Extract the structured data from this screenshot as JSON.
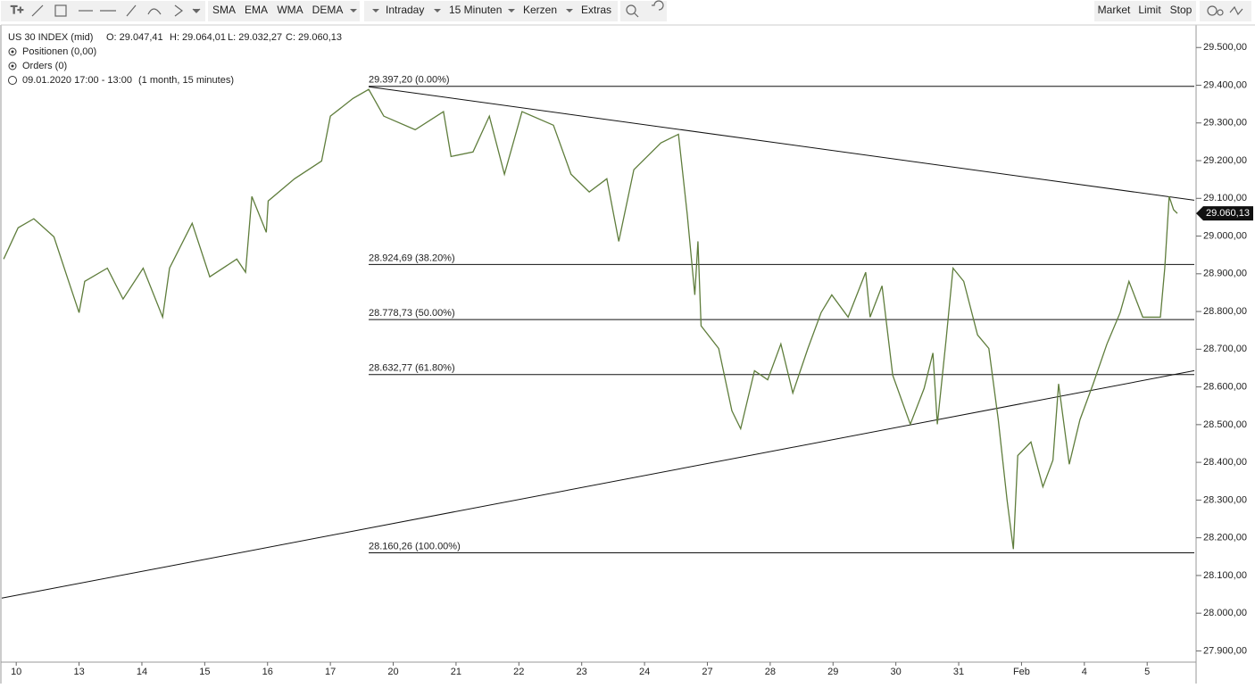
{
  "toolbar": {
    "indicators": [
      "SMA",
      "EMA",
      "WMA",
      "DEMA"
    ],
    "interval": "Intraday",
    "resolution": "15 Minuten",
    "chart_style": "Kerzen",
    "extras": "Extras",
    "orders": [
      "Market",
      "Limit",
      "Stop"
    ]
  },
  "info": {
    "symbol": "US 30 INDEX (mid)",
    "open": "O: 29.047,41",
    "high": "H: 29.064,01",
    "low": "L: 29.032,27",
    "close": "C: 29.060,13",
    "positions": "Positionen (0,00)",
    "orders": "Orders (0)",
    "period": "09.01.2020 17:00 - 13:00",
    "range": "(1 month, 15 minutes)"
  },
  "chart_data": {
    "type": "line",
    "x": [
      -0.2,
      0.03,
      0.28,
      0.6,
      0.81,
      1.0,
      1.09,
      1.45,
      1.7,
      2.02,
      2.33,
      2.44,
      2.8,
      3.08,
      3.51,
      3.65,
      3.75,
      3.98,
      4.01,
      4.43,
      4.86,
      5.0,
      5.36,
      5.61,
      5.85,
      6.35,
      6.8,
      6.92,
      7.27,
      7.53,
      7.77,
      8.05,
      8.55,
      8.83,
      9.12,
      9.4,
      9.59,
      9.83,
      10.26,
      10.54,
      10.68,
      10.8,
      10.85,
      10.9,
      11.18,
      11.39,
      11.53,
      11.75,
      11.96,
      12.17,
      12.36,
      12.6,
      12.81,
      12.98,
      13.24,
      13.52,
      13.59,
      13.78,
      13.95,
      14.23,
      14.45,
      14.59,
      14.66,
      14.8,
      14.91,
      15.08,
      15.3,
      15.48,
      15.63,
      15.77,
      15.87,
      15.94,
      16.15,
      16.34,
      16.5,
      16.59,
      16.76,
      16.93,
      17.14,
      17.36,
      17.57,
      17.71,
      17.93,
      18.21,
      18.28,
      18.35,
      18.42,
      18.48
    ],
    "series": [
      {
        "color": "#5f7d3c",
        "values": [
          28939,
          29022,
          29046,
          28998,
          28892,
          28797,
          28880,
          28915,
          28833,
          28915,
          28785,
          28915,
          29034,
          28892,
          28939,
          28904,
          29105,
          29010,
          29093,
          29152,
          29199,
          29318,
          29365,
          29389,
          29318,
          29282,
          29330,
          29211,
          29223,
          29318,
          29164,
          29330,
          29294,
          29164,
          29117,
          29152,
          28986,
          29176,
          29247,
          29270,
          29057,
          28844,
          28986,
          28762,
          28702,
          28537,
          28489,
          28643,
          28619,
          28714,
          28584,
          28702,
          28797,
          28844,
          28785,
          28904,
          28785,
          28868,
          28631,
          28501,
          28596,
          28690,
          28501,
          28726,
          28915,
          28880,
          28738,
          28702,
          28513,
          28300,
          28170,
          28418,
          28454,
          28335,
          28406,
          28608,
          28395,
          28513,
          28608,
          28714,
          28797,
          28880,
          28785,
          28785,
          28915,
          29105,
          29070,
          29060.13
        ]
      }
    ],
    "xlim": [
      -0.23,
      18.75
    ],
    "xticks": [
      {
        "value": 0,
        "label": "10"
      },
      {
        "value": 1,
        "label": "13"
      },
      {
        "value": 2,
        "label": "14"
      },
      {
        "value": 3,
        "label": "15"
      },
      {
        "value": 4,
        "label": "16"
      },
      {
        "value": 5,
        "label": "17"
      },
      {
        "value": 6,
        "label": "20"
      },
      {
        "value": 7,
        "label": "21"
      },
      {
        "value": 8,
        "label": "22"
      },
      {
        "value": 9,
        "label": "23"
      },
      {
        "value": 10,
        "label": "24"
      },
      {
        "value": 11,
        "label": "27"
      },
      {
        "value": 12,
        "label": "28"
      },
      {
        "value": 13,
        "label": "29"
      },
      {
        "value": 14,
        "label": "30"
      },
      {
        "value": 15,
        "label": "31"
      },
      {
        "value": 16,
        "label": "Feb"
      },
      {
        "value": 17,
        "label": "4"
      },
      {
        "value": 18,
        "label": "5"
      }
    ],
    "ylim": [
      27875,
      29555
    ],
    "yticks": [
      {
        "value": 27900,
        "label": "27.900,00"
      },
      {
        "value": 28000,
        "label": "28.000,00"
      },
      {
        "value": 28100,
        "label": "28.100,00"
      },
      {
        "value": 28200,
        "label": "28.200,00"
      },
      {
        "value": 28300,
        "label": "28.300,00"
      },
      {
        "value": 28400,
        "label": "28.400,00"
      },
      {
        "value": 28500,
        "label": "28.500,00"
      },
      {
        "value": 28600,
        "label": "28.600,00"
      },
      {
        "value": 28700,
        "label": "28.700,00"
      },
      {
        "value": 28800,
        "label": "28.800,00"
      },
      {
        "value": 28900,
        "label": "28.900,00"
      },
      {
        "value": 29000,
        "label": "29.000,00"
      },
      {
        "value": 29100,
        "label": "29.100,00"
      },
      {
        "value": 29200,
        "label": "29.200,00"
      },
      {
        "value": 29300,
        "label": "29.300,00"
      },
      {
        "value": 29400,
        "label": "29.400,00"
      },
      {
        "value": 29500,
        "label": "29.500,00"
      }
    ],
    "fib_levels": [
      {
        "value": 29397.2,
        "label": "29.397,20 (0.00%)"
      },
      {
        "value": 28924.69,
        "label": "28.924,69 (38.20%)"
      },
      {
        "value": 28778.73,
        "label": "28.778,73 (50.00%)"
      },
      {
        "value": 28632.77,
        "label": "28.632,77 (61.80%)"
      },
      {
        "value": 28160.26,
        "label": "28.160,26 (100.00%)"
      }
    ],
    "trendlines": [
      {
        "x": [
          5.61,
          18.75
        ],
        "values": [
          29396,
          29095
        ]
      },
      {
        "x": [
          -0.23,
          18.75
        ],
        "values": [
          28040,
          28643
        ]
      }
    ],
    "last_price": {
      "value": 29060.13,
      "label": "29.060,13"
    }
  }
}
